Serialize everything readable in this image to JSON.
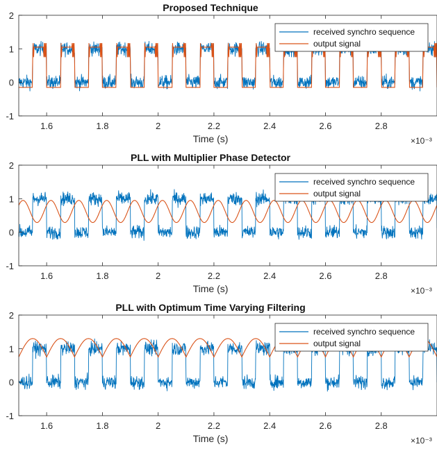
{
  "chart_data": [
    {
      "type": "line",
      "title": "Proposed Technique",
      "xlabel": "Time (s)",
      "x_exponent": "×10⁻³",
      "xlim": [
        1.5,
        3.0
      ],
      "ylim": [
        -1,
        2
      ],
      "xticks": [
        "1.6",
        "1.8",
        "2",
        "2.2",
        "2.4",
        "2.6",
        "2.8"
      ],
      "yticks": [
        "-1",
        "0",
        "1",
        "2"
      ],
      "legend_position": "top-right",
      "series": [
        {
          "name": "received synchro sequence",
          "color": "#0072BD",
          "kind": "noisy square wave",
          "levels": [
            0,
            1
          ],
          "period": 0.1,
          "noise_amplitude": 0.35
        },
        {
          "name": "output signal",
          "color": "#D95319",
          "kind": "square wave with chatter",
          "levels": [
            -0.15,
            1.05
          ],
          "period": 0.1,
          "noise_amplitude": 0.12
        }
      ]
    },
    {
      "type": "line",
      "title": "PLL with Multiplier Phase Detector",
      "xlabel": "Time (s)",
      "x_exponent": "×10⁻³",
      "xlim": [
        1.5,
        3.0
      ],
      "ylim": [
        -1,
        2
      ],
      "xticks": [
        "1.6",
        "1.8",
        "2",
        "2.2",
        "2.4",
        "2.6",
        "2.8"
      ],
      "yticks": [
        "-1",
        "0",
        "1",
        "2"
      ],
      "legend_position": "top-right",
      "series": [
        {
          "name": "received synchro sequence",
          "color": "#0072BD",
          "kind": "noisy square wave",
          "levels": [
            0,
            1
          ],
          "period": 0.1,
          "noise_amplitude": 0.35
        },
        {
          "name": "output signal",
          "color": "#D95319",
          "kind": "sinusoid",
          "center": 0.62,
          "amplitude": 0.33,
          "period": 0.1
        }
      ]
    },
    {
      "type": "line",
      "title": "PLL with Optimum Time Varying Filtering",
      "xlabel": "Time (s)",
      "x_exponent": "×10⁻³",
      "xlim": [
        1.5,
        3.0
      ],
      "ylim": [
        -1,
        2
      ],
      "xticks": [
        "1.6",
        "1.8",
        "2",
        "2.2",
        "2.4",
        "2.6",
        "2.8"
      ],
      "yticks": [
        "-1",
        "0",
        "1",
        "2"
      ],
      "legend_position": "top-right",
      "series": [
        {
          "name": "received synchro sequence",
          "color": "#0072BD",
          "kind": "noisy square wave",
          "levels": [
            0,
            1
          ],
          "period": 0.1,
          "noise_amplitude": 0.35
        },
        {
          "name": "output signal",
          "color": "#D95319",
          "kind": "rectified ripple",
          "min": 0.75,
          "max": 1.3,
          "period": 0.1
        }
      ]
    }
  ]
}
